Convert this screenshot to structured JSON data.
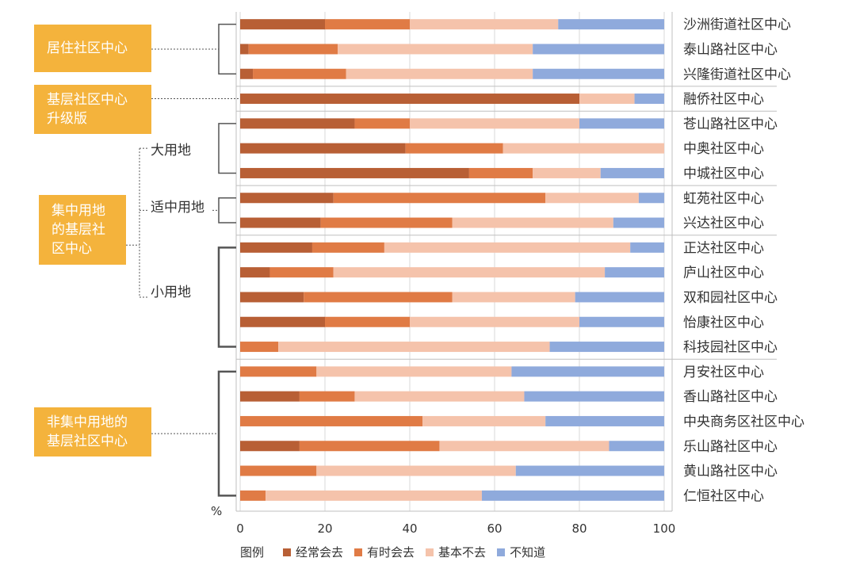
{
  "chart_data": {
    "type": "bar",
    "orientation": "horizontal",
    "stacked": true,
    "unit_label": "%",
    "xlim": [
      0,
      100
    ],
    "xticks": [
      "0",
      "20",
      "40",
      "60",
      "80",
      "100"
    ],
    "categories": [
      "沙洲街道社区中心",
      "泰山路社区中心",
      "兴隆街道社区中心",
      "融侨社区中心",
      "苍山路社区中心",
      "中奥社区中心",
      "中城社区中心",
      "虹苑社区中心",
      "兴达社区中心",
      "正达社区中心",
      "庐山社区中心",
      "双和园社区中心",
      "怡康社区中心",
      "科技园社区中心",
      "月安社区中心",
      "香山路社区中心",
      "中央商务区社区中心",
      "乐山路社区中心",
      "黄山路社区中心",
      "仁恒社区中心"
    ],
    "series": [
      {
        "name": "经常会去",
        "color": "#b85f35",
        "values": [
          20,
          2,
          3,
          80,
          27,
          39,
          54,
          22,
          19,
          17,
          7,
          15,
          20,
          0,
          0,
          14,
          0,
          14,
          0,
          0
        ]
      },
      {
        "name": "有时会去",
        "color": "#e07b45",
        "values": [
          20,
          21,
          22,
          0,
          13,
          23,
          15,
          50,
          31,
          17,
          15,
          35,
          20,
          9,
          18,
          13,
          43,
          33,
          18,
          6
        ]
      },
      {
        "name": "基本不去",
        "color": "#f5c3ab",
        "values": [
          35,
          46,
          44,
          13,
          40,
          38,
          16,
          22,
          38,
          58,
          64,
          29,
          40,
          64,
          46,
          40,
          29,
          40,
          47,
          51
        ]
      },
      {
        "name": "不知道",
        "color": "#8faadc",
        "values": [
          25,
          31,
          31,
          7,
          20,
          0,
          15,
          6,
          12,
          8,
          14,
          21,
          20,
          27,
          36,
          33,
          28,
          13,
          35,
          43
        ]
      }
    ],
    "groups": [
      {
        "label": "居住社区中心",
        "rows": [
          0,
          2
        ]
      },
      {
        "label": "基层社区中心升级版",
        "rows": [
          3,
          3
        ]
      },
      {
        "label": "集中用地的基层社区中心",
        "rows": [
          4,
          13
        ],
        "subgroups": [
          {
            "label": "大用地",
            "rows": [
              4,
              6
            ]
          },
          {
            "label": "适中用地",
            "rows": [
              7,
              8
            ]
          },
          {
            "label": "小用地",
            "rows": [
              9,
              13
            ]
          }
        ]
      },
      {
        "label": "非集中用地的基层社区中心",
        "rows": [
          14,
          19
        ]
      }
    ],
    "legend": {
      "title": "图例",
      "position": "bottom"
    }
  }
}
